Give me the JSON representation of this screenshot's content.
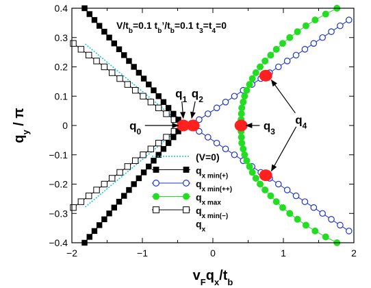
{
  "chart_data": {
    "type": "scatter",
    "title": "V/tb=0.1 tb'/tb=0.1 t3=t4=0",
    "title_parts": [
      {
        "text": "V/t",
        "sub": false
      },
      {
        "text": "b",
        "sub": true
      },
      {
        "text": "=0.1 t",
        "sub": false
      },
      {
        "text": "b",
        "sub": true
      },
      {
        "text": "’/t",
        "sub": false
      },
      {
        "text": "b",
        "sub": true
      },
      {
        "text": "=0.1 t",
        "sub": false
      },
      {
        "text": "3",
        "sub": true
      },
      {
        "text": "=t",
        "sub": false
      },
      {
        "text": "4",
        "sub": true
      },
      {
        "text": "=0",
        "sub": false
      }
    ],
    "xlabel": "vFqx/tb",
    "xlabel_parts": [
      {
        "text": "v",
        "sub": false
      },
      {
        "text": "F",
        "sub": true
      },
      {
        "text": "q",
        "sub": false
      },
      {
        "text": "x",
        "sub": true
      },
      {
        "text": "/t",
        "sub": false
      },
      {
        "text": "b",
        "sub": true
      }
    ],
    "ylabel": "qy / π",
    "ylabel_parts": [
      {
        "text": "q",
        "sub": false
      },
      {
        "text": "y",
        "sub": true
      },
      {
        "text": " / π",
        "sub": false
      }
    ],
    "xlim": [
      -2,
      2
    ],
    "ylim": [
      -0.4,
      0.4
    ],
    "x_ticks": [
      -2,
      -1,
      0,
      1,
      2
    ],
    "x_tick_labels": [
      "−2",
      "−1",
      "0",
      "1",
      "2"
    ],
    "y_ticks": [
      -0.4,
      -0.3,
      -0.2,
      -0.1,
      0,
      0.1,
      0.2,
      0.3,
      0.4
    ],
    "y_tick_labels": [
      "−0.4",
      "−0.3",
      "−0.2",
      "−0.1",
      "0",
      "0.1",
      "0.2",
      "0.3",
      "0.4"
    ],
    "grid": false,
    "legend_position": "bottom-center",
    "legend": [
      {
        "text": "(V=0)",
        "sub": "",
        "style": "dotted-line",
        "color": "#00c8e0"
      },
      {
        "text": "q",
        "sub": "x min(+)",
        "style": "filled-square",
        "color": "#000000"
      },
      {
        "text": "q",
        "sub": "x min(++)",
        "style": "open-circle",
        "color": "#1a33cc"
      },
      {
        "text": "q",
        "sub": "x max",
        "style": "filled-circle",
        "color": "#22dd22"
      },
      {
        "text": "q",
        "sub": "x min(−)",
        "style": "open-square",
        "color": "#000000"
      },
      {
        "text": "q",
        "sub": "x",
        "style": "plain",
        "color": "#000000"
      }
    ],
    "series": [
      {
        "id": "qx_min_plus",
        "style": "filled-square",
        "color": "#000000",
        "branches": [
          {
            "y": [
              0.4,
              0.38,
              0.36,
              0.34,
              0.32,
              0.3,
              0.28,
              0.26,
              0.24,
              0.22,
              0.2,
              0.18,
              0.16,
              0.14,
              0.12,
              0.1,
              0.08,
              0.06,
              0.04,
              0.02,
              0.0
            ],
            "x": [
              -1.82,
              -1.75,
              -1.68,
              -1.61,
              -1.54,
              -1.47,
              -1.4,
              -1.33,
              -1.26,
              -1.19,
              -1.12,
              -1.05,
              -0.98,
              -0.91,
              -0.84,
              -0.77,
              -0.7,
              -0.63,
              -0.56,
              -0.49,
              -0.42
            ]
          },
          {
            "y": [
              -0.4,
              -0.38,
              -0.36,
              -0.34,
              -0.32,
              -0.3,
              -0.28,
              -0.26,
              -0.24,
              -0.22,
              -0.2,
              -0.18,
              -0.16,
              -0.14,
              -0.12,
              -0.1,
              -0.08,
              -0.06,
              -0.04,
              -0.02,
              0.0
            ],
            "x": [
              -1.82,
              -1.75,
              -1.68,
              -1.61,
              -1.54,
              -1.47,
              -1.4,
              -1.33,
              -1.26,
              -1.19,
              -1.12,
              -1.05,
              -0.98,
              -0.91,
              -0.84,
              -0.77,
              -0.7,
              -0.63,
              -0.56,
              -0.49,
              -0.42
            ]
          }
        ]
      },
      {
        "id": "qx_min_minus",
        "style": "open-square",
        "color": "#000000",
        "branches": [
          {
            "y": [
              0.28,
              0.26,
              0.24,
              0.22,
              0.2,
              0.18,
              0.16,
              0.14,
              0.12,
              0.1,
              0.08,
              0.06,
              0.04,
              0.02,
              0.0
            ],
            "x": [
              -1.98,
              -1.87,
              -1.76,
              -1.65,
              -1.54,
              -1.43,
              -1.32,
              -1.21,
              -1.1,
              -0.99,
              -0.88,
              -0.77,
              -0.66,
              -0.55,
              -0.44
            ]
          },
          {
            "y": [
              -0.28,
              -0.26,
              -0.24,
              -0.22,
              -0.2,
              -0.18,
              -0.16,
              -0.14,
              -0.12,
              -0.1,
              -0.08,
              -0.06,
              -0.04,
              -0.02,
              0.0
            ],
            "x": [
              -1.98,
              -1.87,
              -1.76,
              -1.65,
              -1.54,
              -1.43,
              -1.32,
              -1.21,
              -1.1,
              -0.99,
              -0.88,
              -0.77,
              -0.66,
              -0.55,
              -0.44
            ]
          }
        ]
      },
      {
        "id": "qx_min_plusplus",
        "style": "open-circle",
        "color": "#1a33cc",
        "branches": [
          {
            "y": [
              0.0,
              0.02,
              0.04,
              0.06,
              0.08,
              0.1,
              0.12,
              0.14,
              0.16,
              0.18,
              0.2,
              0.22,
              0.24,
              0.26,
              0.28,
              0.3,
              0.32,
              0.34,
              0.36
            ],
            "x": [
              -0.32,
              -0.195,
              -0.07,
              0.055,
              0.18,
              0.305,
              0.43,
              0.555,
              0.68,
              0.805,
              0.93,
              1.055,
              1.18,
              1.305,
              1.43,
              1.555,
              1.68,
              1.805,
              1.93
            ]
          },
          {
            "y": [
              0.0,
              -0.02,
              -0.04,
              -0.06,
              -0.08,
              -0.1,
              -0.12,
              -0.14,
              -0.16,
              -0.18,
              -0.2,
              -0.22,
              -0.24,
              -0.26,
              -0.28,
              -0.3,
              -0.32,
              -0.34,
              -0.36
            ],
            "x": [
              -0.32,
              -0.195,
              -0.07,
              0.055,
              0.18,
              0.305,
              0.43,
              0.555,
              0.68,
              0.805,
              0.93,
              1.055,
              1.18,
              1.305,
              1.43,
              1.555,
              1.68,
              1.805,
              1.93
            ]
          }
        ]
      },
      {
        "id": "qx_max",
        "style": "filled-circle",
        "color": "#22dd22",
        "branches": [
          {
            "y": [
              -0.4,
              -0.38,
              -0.36,
              -0.34,
              -0.32,
              -0.3,
              -0.28,
              -0.26,
              -0.24,
              -0.22,
              -0.2,
              -0.18,
              -0.16,
              -0.14,
              -0.12,
              -0.1,
              -0.08,
              -0.06,
              -0.04,
              -0.02,
              0.0,
              0.02,
              0.04,
              0.06,
              0.08,
              0.1,
              0.12,
              0.14,
              0.16,
              0.18,
              0.2,
              0.22,
              0.24,
              0.26,
              0.28,
              0.3,
              0.32,
              0.34,
              0.36,
              0.38,
              0.4
            ],
            "x": [
              1.76,
              1.6,
              1.45,
              1.32,
              1.2,
              1.09,
              0.99,
              0.9,
              0.82,
              0.74,
              0.67,
              0.61,
              0.56,
              0.52,
              0.48,
              0.45,
              0.43,
              0.41,
              0.405,
              0.4,
              0.4,
              0.4,
              0.405,
              0.41,
              0.43,
              0.45,
              0.48,
              0.52,
              0.56,
              0.61,
              0.67,
              0.74,
              0.82,
              0.9,
              0.99,
              1.09,
              1.2,
              1.32,
              1.45,
              1.6,
              1.76
            ]
          }
        ]
      },
      {
        "id": "v_zero",
        "style": "dotted-line",
        "color": "#00c8e0",
        "branches": [
          {
            "y": [
              0.0,
              0.04,
              0.08,
              0.12,
              0.16,
              0.2,
              0.24,
              0.28
            ],
            "x": [
              -0.42,
              -0.62,
              -0.82,
              -1.02,
              -1.22,
              -1.42,
              -1.62,
              -1.82
            ]
          },
          {
            "y": [
              0.0,
              -0.04,
              -0.08,
              -0.12,
              -0.16,
              -0.2,
              -0.24,
              -0.28
            ],
            "x": [
              -0.42,
              -0.62,
              -0.82,
              -1.02,
              -1.22,
              -1.42,
              -1.62,
              -1.82
            ]
          }
        ]
      }
    ],
    "special_points": [
      {
        "x": -0.42,
        "y": 0.0,
        "color": "#ff2020"
      },
      {
        "x": -0.28,
        "y": 0.0,
        "color": "#ff2020"
      },
      {
        "x": 0.4,
        "y": 0.0,
        "color": "#ff2020"
      },
      {
        "x": 0.75,
        "y": 0.17,
        "color": "#ff2020"
      },
      {
        "x": 0.75,
        "y": -0.17,
        "color": "#ff2020"
      }
    ],
    "annotations": [
      {
        "label": "q",
        "sub": "0",
        "x": -1.1,
        "y": 0.0,
        "arrow_to": [
          -0.49,
          0.0
        ]
      },
      {
        "label": "q",
        "sub": "1",
        "x": -0.45,
        "y": 0.11,
        "arrow_to": [
          -0.42,
          0.025
        ]
      },
      {
        "label": "q",
        "sub": "2",
        "x": -0.22,
        "y": 0.11,
        "arrow_to": [
          -0.3,
          0.025
        ]
      },
      {
        "label": "q",
        "sub": "3",
        "x": 0.8,
        "y": 0.0,
        "arrow_to": [
          0.47,
          0.0
        ]
      },
      {
        "label": "q",
        "sub": "4",
        "x": 1.25,
        "y": 0.02,
        "arrow_to": [
          [
            0.83,
            0.155
          ],
          [
            0.83,
            -0.155
          ]
        ]
      }
    ]
  }
}
